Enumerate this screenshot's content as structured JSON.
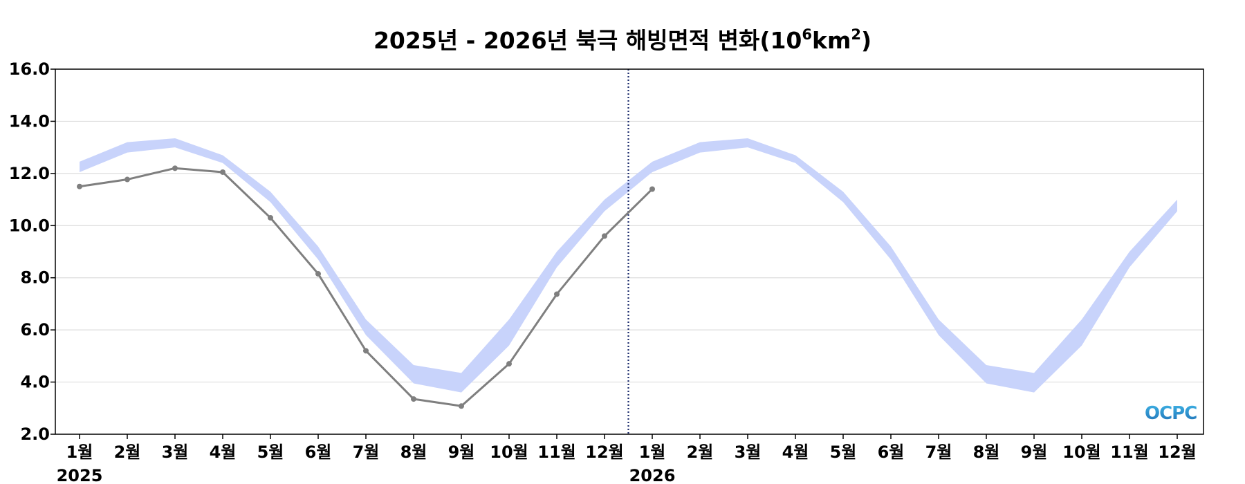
{
  "chart_data": {
    "type": "line",
    "title": "2025년 - 2026년 북극 해빙면적 변화(10",
    "title_sup1": "6",
    "title_mid": "km",
    "title_sup2": "2",
    "title_end": ")",
    "ylim": [
      2.0,
      16.0
    ],
    "yticks": [
      "16.0",
      "14.0",
      "12.0",
      "10.0",
      "8.0",
      "6.0",
      "4.0",
      "2.0"
    ],
    "ytick_values": [
      16,
      14,
      12,
      10,
      8,
      6,
      4,
      2
    ],
    "x_labels": [
      "1월",
      "2월",
      "3월",
      "4월",
      "5월",
      "6월",
      "7월",
      "8월",
      "9월",
      "10월",
      "11월",
      "12월",
      "1월",
      "2월",
      "3월",
      "4월",
      "5월",
      "6월",
      "7월",
      "8월",
      "9월",
      "10월",
      "11월",
      "12월"
    ],
    "year_labels": [
      {
        "text": "2025",
        "index": 0
      },
      {
        "text": "2026",
        "index": 12
      }
    ],
    "grid": true,
    "divider_after_index": 11.5,
    "climatology_band": {
      "lower": [
        12.05,
        12.8,
        13.0,
        12.4,
        10.9,
        8.7,
        5.8,
        3.95,
        3.6,
        5.4,
        8.4,
        10.55,
        12.05,
        12.8,
        13.0,
        12.4,
        10.9,
        8.7,
        5.8,
        3.95,
        3.6,
        5.4,
        8.4,
        10.55
      ],
      "upper": [
        12.45,
        13.2,
        13.35,
        12.7,
        11.3,
        9.2,
        6.4,
        4.65,
        4.35,
        6.4,
        9.0,
        11.0,
        12.45,
        13.2,
        13.35,
        12.7,
        11.3,
        9.2,
        6.4,
        4.65,
        4.35,
        6.4,
        9.0,
        11.0
      ],
      "color": "#c8d3fb"
    },
    "series": [
      {
        "values": [
          11.5,
          11.77,
          12.2,
          12.05,
          10.3,
          8.15,
          5.2,
          3.35,
          3.08,
          4.7,
          7.37,
          9.6,
          11.4
        ],
        "color": "#7f7f7f"
      }
    ],
    "logo": {
      "text": "OCPC",
      "color": "#1f6fb5"
    }
  }
}
